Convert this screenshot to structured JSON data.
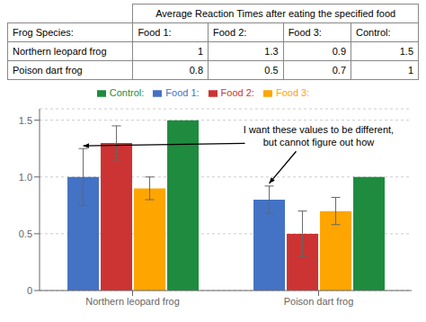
{
  "chart_data": [
    {
      "type": "table",
      "title": "Average Reaction Times after eating the specified food",
      "columns": [
        "Frog Species:",
        "Food 1:",
        "Food 2:",
        "Food 3:",
        "Control:"
      ],
      "rows": [
        [
          "Northern leopard frog",
          "1",
          "1.3",
          "0.9",
          "1.5"
        ],
        [
          "Poison dart frog",
          "0.8",
          "0.5",
          "0.7",
          "1"
        ]
      ]
    },
    {
      "type": "bar",
      "categories": [
        "Northern leopard frog",
        "Poison dart frog"
      ],
      "series": [
        {
          "name": "Food 1:",
          "color": "#4472C4",
          "values": [
            1.0,
            0.8
          ],
          "errors": [
            0.25,
            0.12
          ]
        },
        {
          "name": "Food 2:",
          "color": "#CC3333",
          "values": [
            1.3,
            0.5
          ],
          "errors": [
            0.15,
            0.2
          ]
        },
        {
          "name": "Food 3:",
          "color": "#FFA500",
          "values": [
            0.9,
            0.7
          ],
          "errors": [
            0.1,
            0.12
          ]
        },
        {
          "name": "Control:",
          "color": "#1E8B3E",
          "values": [
            1.5,
            1.0
          ],
          "errors": [
            0.0,
            0.0
          ]
        }
      ],
      "ylim": [
        0,
        1.6
      ],
      "yticks": [
        0,
        0.5,
        {
          "value": 1.0,
          "label": "1.0"
        },
        1.5
      ],
      "grid": true,
      "legend": "top",
      "annotation": "I want these values to be different,\nbut cannot figure out how"
    }
  ]
}
